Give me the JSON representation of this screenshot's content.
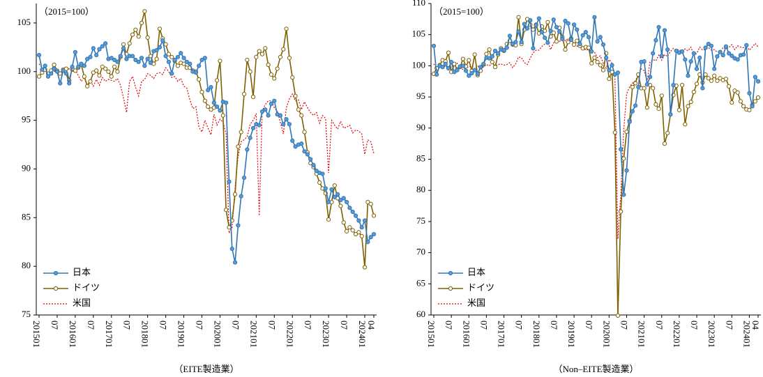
{
  "chart_data": [
    {
      "type": "line",
      "annotation": "（2015=100）",
      "xlabel": "（EITE製造業）",
      "legend": "lower left",
      "ylim": [
        75,
        107
      ],
      "yticks": [
        75,
        80,
        85,
        90,
        95,
        100,
        105
      ],
      "categories": [
        "201501",
        null,
        null,
        null,
        null,
        null,
        "07",
        null,
        null,
        null,
        null,
        null,
        "201601",
        null,
        null,
        null,
        null,
        null,
        "07",
        null,
        null,
        null,
        null,
        null,
        "201701",
        null,
        null,
        null,
        null,
        null,
        "07",
        null,
        null,
        null,
        null,
        null,
        "201801",
        null,
        null,
        null,
        null,
        null,
        "07",
        null,
        null,
        null,
        null,
        null,
        "201901",
        null,
        null,
        null,
        null,
        null,
        "07",
        null,
        null,
        null,
        null,
        null,
        "202001",
        null,
        null,
        null,
        null,
        null,
        "07",
        null,
        null,
        null,
        null,
        null,
        "202101",
        null,
        null,
        null,
        null,
        null,
        "07",
        null,
        null,
        null,
        null,
        null,
        "202201",
        null,
        null,
        null,
        null,
        null,
        "07",
        null,
        null,
        null,
        null,
        null,
        "202301",
        null,
        null,
        null,
        null,
        null,
        "07",
        null,
        null,
        null,
        null,
        null,
        "202401",
        null,
        null,
        "04"
      ],
      "series": [
        {
          "name": "日本",
          "color": "#2e75b6",
          "marker": "filled",
          "linestyle": "solid",
          "values": [
            101.7,
            100.2,
            100.6,
            99.5,
            99.8,
            100.3,
            100.0,
            98.8,
            100.1,
            99.8,
            98.8,
            100.5,
            102.0,
            100.5,
            100.8,
            100.6,
            101.3,
            101.5,
            102.4,
            101.7,
            102.3,
            102.6,
            102.9,
            101.3,
            101.4,
            101.2,
            101.0,
            101.6,
            102.4,
            101.3,
            101.6,
            101.6,
            101.2,
            101.0,
            101.4,
            100.6,
            101.3,
            100.9,
            102.1,
            102.2,
            102.5,
            103.2,
            101.6,
            101.0,
            99.8,
            101.2,
            101.5,
            101.9,
            101.4,
            101.0,
            100.8,
            100.0,
            99.9,
            100.6,
            101.2,
            101.4,
            98.1,
            98.4,
            96.8,
            96.4,
            96.0,
            96.9,
            96.8,
            88.7,
            81.8,
            80.4,
            84.2,
            87.2,
            89.1,
            92.0,
            93.2,
            94.2,
            94.6,
            94.5,
            95.9,
            96.1,
            95.5,
            96.7,
            97.0,
            95.6,
            95.5,
            94.6,
            95.1,
            94.6,
            92.9,
            92.3,
            92.5,
            92.6,
            91.8,
            91.5,
            91.0,
            90.4,
            89.8,
            89.6,
            89.5,
            88.0,
            86.6,
            87.9,
            87.1,
            87.4,
            86.8,
            87.0,
            86.6,
            86.0,
            85.6,
            85.2,
            84.7,
            84.0,
            84.7,
            82.5,
            83.0,
            83.3
          ]
        },
        {
          "name": "ドイツ",
          "color": "#7f6000",
          "marker": "open",
          "linestyle": "solid",
          "values": [
            99.5,
            99.9,
            100.2,
            99.8,
            100.1,
            100.7,
            100.1,
            99.8,
            100.2,
            100.3,
            99.1,
            100.3,
            100.1,
            100.4,
            100.7,
            99.5,
            98.5,
            99.0,
            99.9,
            100.1,
            99.6,
            100.5,
            100.3,
            100.0,
            99.5,
            100.5,
            100.0,
            101.5,
            102.8,
            101.8,
            102.9,
            103.8,
            104.3,
            103.6,
            105.0,
            106.2,
            103.5,
            101.6,
            100.8,
            101.3,
            104.4,
            103.4,
            102.8,
            101.8,
            101.5,
            101.1,
            100.6,
            100.9,
            100.8,
            100.4,
            100.4,
            100.1,
            100.0,
            99.2,
            97.9,
            97.0,
            96.4,
            96.1,
            96.3,
            99.1,
            101.1,
            95.5,
            85.8,
            84.0,
            84.7,
            87.4,
            92.3,
            93.8,
            97.7,
            101.2,
            100.0,
            97.4,
            101.5,
            102.1,
            101.8,
            102.4,
            100.7,
            99.7,
            99.3,
            100.3,
            101.5,
            102.3,
            104.4,
            101.4,
            99.4,
            97.5,
            96.1,
            95.5,
            93.8,
            91.7,
            90.6,
            90.2,
            89.5,
            88.6,
            88.0,
            87.5,
            84.8,
            86.6,
            88.3,
            87.0,
            86.2,
            84.5,
            83.6,
            84.0,
            83.7,
            83.3,
            83.5,
            83.1,
            79.9,
            86.6,
            86.4,
            85.2
          ]
        },
        {
          "name": "米国",
          "color": "#e00000",
          "marker": "none",
          "linestyle": "dotted",
          "values": [
            100.8,
            100.4,
            100.2,
            99.6,
            99.9,
            100.0,
            100.2,
            99.9,
            100.0,
            100.1,
            100.3,
            100.0,
            100.2,
            99.6,
            99.0,
            99.4,
            98.6,
            99.1,
            98.5,
            99.2,
            98.6,
            99.4,
            99.0,
            99.2,
            99.1,
            99.0,
            99.3,
            98.6,
            97.3,
            95.8,
            99.0,
            99.5,
            98.4,
            97.5,
            99.0,
            99.2,
            99.8,
            99.6,
            99.3,
            99.8,
            99.9,
            99.7,
            100.4,
            100.0,
            99.4,
            99.5,
            99.0,
            99.3,
            98.5,
            98.3,
            97.1,
            96.2,
            96.4,
            94.3,
            93.8,
            95.0,
            94.2,
            93.5,
            95.6,
            94.5,
            95.1,
            94.8,
            93.6,
            83.4,
            84.0,
            88.1,
            91.3,
            92.8,
            93.0,
            93.3,
            94.6,
            95.0,
            95.7,
            85.2,
            96.0,
            96.6,
            97.0,
            97.0,
            96.3,
            95.9,
            94.8,
            93.6,
            96.3,
            97.2,
            97.7,
            97.0,
            97.1,
            96.1,
            96.9,
            96.3,
            95.8,
            95.5,
            95.8,
            94.7,
            95.5,
            95.2,
            89.6,
            95.0,
            94.5,
            94.1,
            94.9,
            94.2,
            94.3,
            94.5,
            93.7,
            94.0,
            93.9,
            93.6,
            91.5,
            93.0,
            92.8,
            91.6
          ]
        }
      ]
    },
    {
      "type": "line",
      "annotation": "（2015=100）",
      "xlabel": "（Non–EITE製造業）",
      "legend": "lower left",
      "ylim": [
        60,
        110
      ],
      "yticks": [
        60,
        65,
        70,
        75,
        80,
        85,
        90,
        95,
        100,
        105,
        110
      ],
      "categories": [
        "201501",
        null,
        null,
        null,
        null,
        null,
        "07",
        null,
        null,
        null,
        null,
        null,
        "201601",
        null,
        null,
        null,
        null,
        null,
        "07",
        null,
        null,
        null,
        null,
        null,
        "201701",
        null,
        null,
        null,
        null,
        null,
        "07",
        null,
        null,
        null,
        null,
        null,
        "201801",
        null,
        null,
        null,
        null,
        null,
        "07",
        null,
        null,
        null,
        null,
        null,
        "201901",
        null,
        null,
        null,
        null,
        null,
        "07",
        null,
        null,
        null,
        null,
        null,
        "202001",
        null,
        null,
        null,
        null,
        null,
        "07",
        null,
        null,
        null,
        null,
        null,
        "202101",
        null,
        null,
        null,
        null,
        null,
        "07",
        null,
        null,
        null,
        null,
        null,
        "202201",
        null,
        null,
        null,
        null,
        null,
        "07",
        null,
        null,
        null,
        null,
        null,
        "202301",
        null,
        null,
        null,
        null,
        null,
        "07",
        null,
        null,
        null,
        null,
        null,
        "202401",
        null,
        null,
        "04"
      ],
      "series": [
        {
          "name": "日本",
          "color": "#2e75b6",
          "marker": "filled",
          "linestyle": "solid",
          "values": [
            103.2,
            98.6,
            100.0,
            99.8,
            100.3,
            99.6,
            100.6,
            99.0,
            99.3,
            99.9,
            100.0,
            99.2,
            98.4,
            98.8,
            99.3,
            98.7,
            99.8,
            100.3,
            101.3,
            101.2,
            101.5,
            102.4,
            102.0,
            102.6,
            102.5,
            102.9,
            104.8,
            103.5,
            103.8,
            105.5,
            103.8,
            106.7,
            106.0,
            107.3,
            102.8,
            106.5,
            107.6,
            105.4,
            104.5,
            103.7,
            105.6,
            107.4,
            106.2,
            105.5,
            104.3,
            107.2,
            106.8,
            104.2,
            106.6,
            105.8,
            103.5,
            104.9,
            105.4,
            104.6,
            102.3,
            107.8,
            103.9,
            104.6,
            103.4,
            101.3,
            99.3,
            100.1,
            98.6,
            98.9,
            86.6,
            79.3,
            83.2,
            91.0,
            92.7,
            93.6,
            96.6,
            100.6,
            100.7,
            97.0,
            98.2,
            102.0,
            104.1,
            106.2,
            101.6,
            105.7,
            102.6,
            92.2,
            96.9,
            102.4,
            102.1,
            102.3,
            101.0,
            98.4,
            100.7,
            102.0,
            99.5,
            101.3,
            96.4,
            102.9,
            103.5,
            103.2,
            99.5,
            101.5,
            102.2,
            101.7,
            103.1,
            102.0,
            101.6,
            101.2,
            101.0,
            101.7,
            101.8,
            103.3,
            95.6,
            93.5,
            98.2,
            97.5
          ]
        },
        {
          "name": "ドイツ",
          "color": "#7f6000",
          "marker": "open",
          "linestyle": "solid",
          "values": [
            98.7,
            99.6,
            100.1,
            100.9,
            100.7,
            102.1,
            99.0,
            100.3,
            99.4,
            99.8,
            101.1,
            99.9,
            100.9,
            99.2,
            101.8,
            98.5,
            99.2,
            100.2,
            101.9,
            102.6,
            100.6,
            99.8,
            101.8,
            102.8,
            102.4,
            103.5,
            104.0,
            103.4,
            103.3,
            107.8,
            103.5,
            105.8,
            107.5,
            106.6,
            105.8,
            106.6,
            105.2,
            106.3,
            105.6,
            107.0,
            104.7,
            105.3,
            103.9,
            106.1,
            104.6,
            102.6,
            103.8,
            104.4,
            103.4,
            104.0,
            103.2,
            102.8,
            103.0,
            102.9,
            100.4,
            101.3,
            100.6,
            100.1,
            99.3,
            102.0,
            97.9,
            99.0,
            89.3,
            59.9,
            76.6,
            85.1,
            89.4,
            91.2,
            96.6,
            97.2,
            98.6,
            96.4,
            96.4,
            93.3,
            96.9,
            96.4,
            93.8,
            93.1,
            95.2,
            87.5,
            89.2,
            92.2,
            95.3,
            96.8,
            92.9,
            96.9,
            90.6,
            93.5,
            94.2,
            95.8,
            97.1,
            98.6,
            97.3,
            98.6,
            98.0,
            97.6,
            98.4,
            97.6,
            98.0,
            97.7,
            97.9,
            96.7,
            94.1,
            96.0,
            95.7,
            94.3,
            93.5,
            93.0,
            92.9,
            93.7,
            94.3,
            94.9
          ]
        },
        {
          "name": "米国",
          "color": "#e00000",
          "marker": "none",
          "linestyle": "dotted",
          "values": [
            100.3,
            99.5,
            100.1,
            99.6,
            100.0,
            99.5,
            99.8,
            99.8,
            100.4,
            99.6,
            99.4,
            99.7,
            99.8,
            100.0,
            99.5,
            100.0,
            99.6,
            99.8,
            100.2,
            100.0,
            100.4,
            100.0,
            100.2,
            100.3,
            100.1,
            100.2,
            100.5,
            99.7,
            100.3,
            101.4,
            101.3,
            100.5,
            100.2,
            101.2,
            102.1,
            102.5,
            102.5,
            103.1,
            103.5,
            103.8,
            102.6,
            103.7,
            104.1,
            103.8,
            104.8,
            104.0,
            104.4,
            103.9,
            103.6,
            103.1,
            103.8,
            102.9,
            102.5,
            102.6,
            102.4,
            102.2,
            101.3,
            101.6,
            100.4,
            99.6,
            101.0,
            100.4,
            98.0,
            72.2,
            79.4,
            89.7,
            95.5,
            96.6,
            97.2,
            97.6,
            98.5,
            99.5,
            99.2,
            97.5,
            100.6,
            101.0,
            100.8,
            101.7,
            100.9,
            101.8,
            101.5,
            102.3,
            102.8,
            102.5,
            102.6,
            102.3,
            102.7,
            102.4,
            103.0,
            101.7,
            102.0,
            103.0,
            102.5,
            102.6,
            102.9,
            102.5,
            102.6,
            102.2,
            102.3,
            102.9,
            102.7,
            102.9,
            103.4,
            102.6,
            103.2,
            103.0,
            102.9,
            103.3,
            102.5,
            103.0,
            103.6,
            103.0
          ]
        }
      ]
    }
  ]
}
